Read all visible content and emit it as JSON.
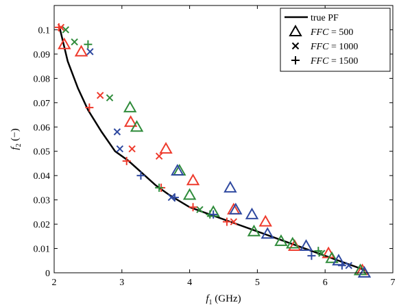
{
  "chart_data": {
    "type": "scatter",
    "xlabel": {
      "var": "f",
      "sub": "1",
      "unit": " (GHz)"
    },
    "ylabel": {
      "var": "f",
      "sub": "2",
      "unit": " (−)"
    },
    "xlim": [
      2,
      7
    ],
    "ylim": [
      0,
      0.11
    ],
    "xticks": [
      2,
      3,
      4,
      5,
      6,
      7
    ],
    "yticks": [
      0,
      0.01,
      0.02,
      0.03,
      0.04,
      0.05,
      0.06,
      0.07,
      0.08,
      0.09,
      0.1
    ],
    "xtick_labels": [
      "2",
      "3",
      "4",
      "5",
      "6",
      "7"
    ],
    "ytick_labels": [
      "0",
      "0.01",
      "0.02",
      "0.03",
      "0.04",
      "0.05",
      "0.06",
      "0.07",
      "0.08",
      "0.09",
      "0.1"
    ],
    "grid": false,
    "legend_position": "top-right",
    "legend": [
      {
        "marker": "line",
        "label": "true PF"
      },
      {
        "marker": "triangle",
        "label_var": "FFC",
        "label_rest": " = 500"
      },
      {
        "marker": "x",
        "label_var": "FFC",
        "label_rest": " = 1000"
      },
      {
        "marker": "plus",
        "label_var": "FFC",
        "label_rest": " = 1500"
      }
    ],
    "colors": {
      "red": "#ee3a2c",
      "green": "#2e8b3a",
      "blue": "#2f49a0",
      "curve": "#000000"
    },
    "curve": {
      "name": "true PF",
      "x": [
        2.08,
        2.2,
        2.35,
        2.5,
        2.7,
        2.9,
        3.1,
        3.3,
        3.5,
        3.7,
        4.0,
        4.3,
        4.6,
        5.0,
        5.4,
        5.8,
        6.2,
        6.5,
        6.6
      ],
      "y": [
        0.101,
        0.087,
        0.076,
        0.067,
        0.058,
        0.05,
        0.046,
        0.041,
        0.036,
        0.032,
        0.027,
        0.024,
        0.021,
        0.017,
        0.013,
        0.009,
        0.005,
        0.002,
        0.001
      ]
    },
    "series": [
      {
        "marker": "triangle",
        "color": "red",
        "x": [
          2.15,
          2.4,
          3.13,
          3.65,
          4.05,
          4.65,
          5.12,
          5.55,
          6.05,
          6.55
        ],
        "y": [
          0.094,
          0.091,
          0.062,
          0.051,
          0.038,
          0.026,
          0.021,
          0.011,
          0.008,
          0.001
        ]
      },
      {
        "marker": "triangle",
        "color": "green",
        "x": [
          3.12,
          3.22,
          3.85,
          4.0,
          4.35,
          4.95,
          5.35,
          5.52,
          6.1,
          6.52
        ],
        "y": [
          0.068,
          0.06,
          0.042,
          0.032,
          0.025,
          0.017,
          0.013,
          0.012,
          0.006,
          0.001
        ]
      },
      {
        "marker": "triangle",
        "color": "blue",
        "x": [
          3.82,
          4.6,
          4.68,
          4.92,
          5.15,
          5.72,
          6.2,
          6.58
        ],
        "y": [
          0.042,
          0.035,
          0.026,
          0.024,
          0.016,
          0.011,
          0.005,
          0.0
        ]
      },
      {
        "marker": "x",
        "color": "red",
        "x": [
          2.1,
          2.68,
          3.15,
          3.55,
          4.65
        ],
        "y": [
          0.101,
          0.073,
          0.051,
          0.048,
          0.021
        ]
      },
      {
        "marker": "x",
        "color": "green",
        "x": [
          2.17,
          2.3,
          2.82,
          4.15,
          5.95
        ],
        "y": [
          0.1,
          0.095,
          0.072,
          0.026,
          0.008
        ]
      },
      {
        "marker": "x",
        "color": "blue",
        "x": [
          2.53,
          2.93,
          2.97,
          3.73,
          6.35
        ],
        "y": [
          0.091,
          0.058,
          0.051,
          0.031,
          0.003
        ]
      },
      {
        "marker": "plus",
        "color": "red",
        "x": [
          2.07,
          2.52,
          3.07,
          3.58,
          4.05,
          4.55
        ],
        "y": [
          0.101,
          0.068,
          0.046,
          0.035,
          0.027,
          0.021
        ]
      },
      {
        "marker": "plus",
        "color": "green",
        "x": [
          2.5,
          3.55,
          4.3,
          5.9
        ],
        "y": [
          0.094,
          0.035,
          0.024,
          0.009
        ]
      },
      {
        "marker": "plus",
        "color": "blue",
        "x": [
          3.28,
          3.78,
          4.35,
          5.8,
          6.25
        ],
        "y": [
          0.04,
          0.031,
          0.024,
          0.007,
          0.003
        ]
      }
    ]
  }
}
